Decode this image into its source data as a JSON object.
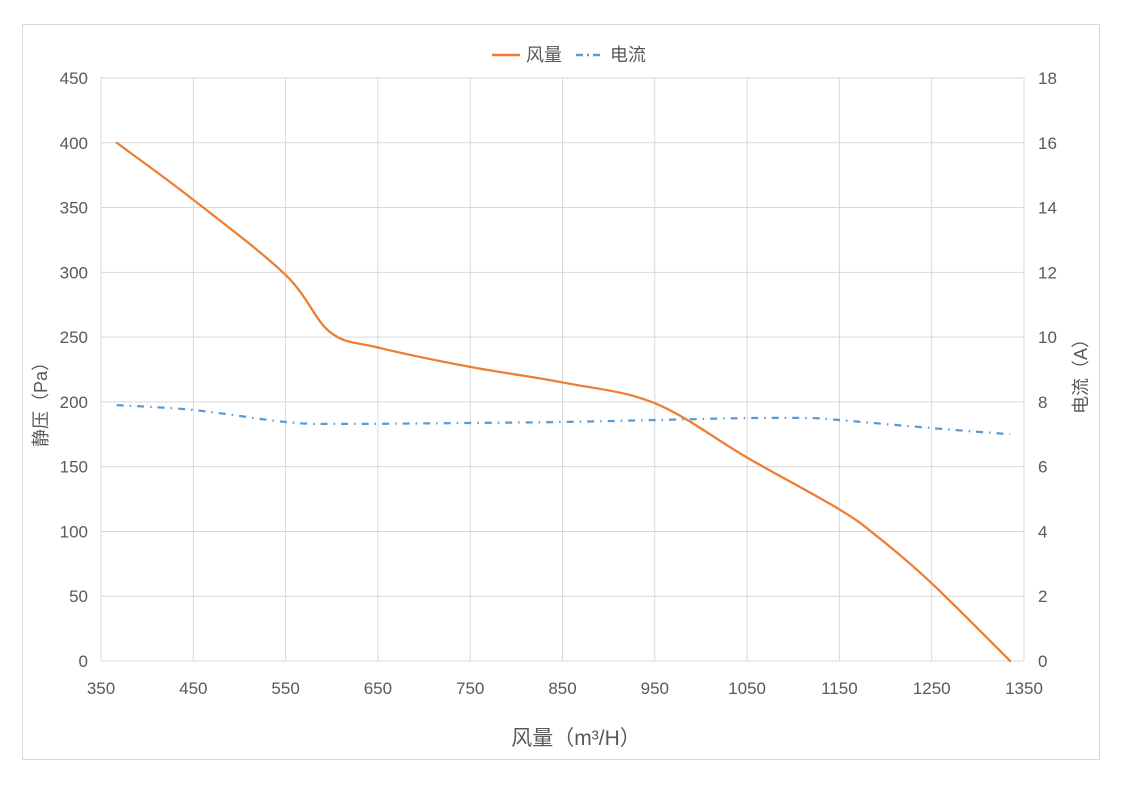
{
  "chart_data": {
    "type": "line",
    "title": "",
    "xlabel": "风量（m³/H）",
    "ylabel": "静压（Pa）",
    "y2label": "电流（A）",
    "xlim": [
      350,
      1350
    ],
    "ylim": [
      0,
      450
    ],
    "y2lim": [
      0,
      18
    ],
    "x_ticks": [
      350,
      450,
      550,
      650,
      750,
      850,
      950,
      1050,
      1150,
      1250,
      1350
    ],
    "y_ticks": [
      0,
      50,
      100,
      150,
      200,
      250,
      300,
      350,
      400,
      450
    ],
    "y2_ticks": [
      0,
      2,
      4,
      6,
      8,
      10,
      12,
      14,
      16,
      18
    ],
    "grid": true,
    "legend_position": "top",
    "series": [
      {
        "name": "风量",
        "axis": "left",
        "color": "#ED7D31",
        "style": "solid",
        "x": [
          367,
          450,
          550,
          598,
          650,
          750,
          850,
          950,
          1050,
          1150,
          1193,
          1250,
          1335
        ],
        "values": [
          400,
          356,
          298,
          254,
          242,
          227,
          215,
          199,
          157,
          117,
          95,
          60,
          0
        ]
      },
      {
        "name": "电流",
        "axis": "right",
        "color": "#5B9BD5",
        "style": "dash-dot",
        "x": [
          367,
          450,
          550,
          608,
          750,
          850,
          950,
          1050,
          1118,
          1150,
          1250,
          1335
        ],
        "values": [
          7.9,
          7.75,
          7.38,
          7.32,
          7.35,
          7.38,
          7.44,
          7.5,
          7.5,
          7.44,
          7.19,
          7.0
        ]
      }
    ]
  },
  "legend": {
    "items": [
      {
        "label": "风量"
      },
      {
        "label": "电流"
      }
    ]
  }
}
